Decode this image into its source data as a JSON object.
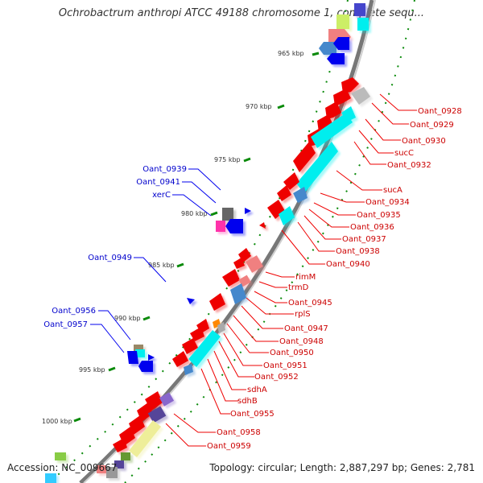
{
  "map": {
    "title": "Ochrobactrum anthropi ATCC 49188 chromosome 1, complete sequ...",
    "accession": "Accession: NC_009667",
    "summary": "Topology: circular; Length: 2,887,297 bp; Genes: 2,781"
  },
  "ticks": [
    "965 kbp",
    "970 kbp",
    "975 kbp",
    "980 kbp",
    "985 kbp",
    "990 kbp",
    "995 kbp",
    "1000 kbp"
  ],
  "right_labels": [
    "Oant_0928",
    "Oant_0929",
    "Oant_0930",
    "sucC",
    "Oant_0932",
    "sucA",
    "Oant_0934",
    "Oant_0935",
    "Oant_0936",
    "Oant_0937",
    "Oant_0938",
    "Oant_0940",
    "rimM",
    "trmD",
    "Oant_0945",
    "rplS",
    "Oant_0947",
    "Oant_0948",
    "Oant_0950",
    "Oant_0951",
    "Oant_0952",
    "sdhA",
    "sdhB",
    "Oant_0955",
    "Oant_0958",
    "Oant_0959"
  ],
  "left_labels": [
    "Oant_0939",
    "Oant_0941",
    "xerC",
    "Oant_0949",
    "Oant_0956",
    "Oant_0957"
  ],
  "colors": {
    "forward": "#ee0000",
    "reverse": "#0000ee",
    "rna": "#00eeee",
    "backbone": "#888888",
    "ticks": "#007700",
    "right_text": "#cc0000",
    "left_text": "#0000cc"
  }
}
